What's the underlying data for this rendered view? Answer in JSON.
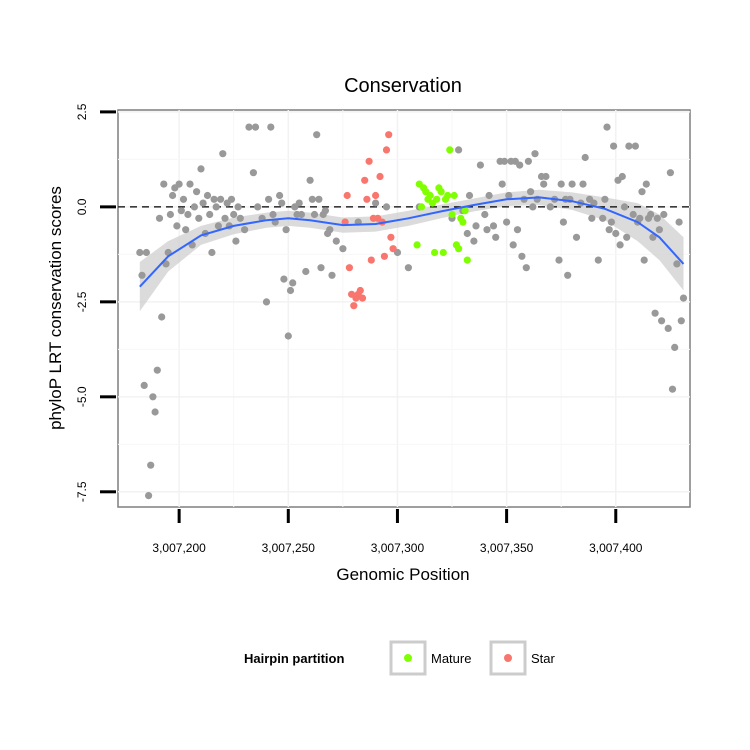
{
  "chart_data": {
    "type": "scatter",
    "title": "Conservation",
    "xlabel": "Genomic Position",
    "ylabel": "phyloP LRT conservation scores",
    "xlim": [
      3007172,
      3007434
    ],
    "ylim": [
      -7.9,
      2.55
    ],
    "x_ticks": [
      3007200,
      3007250,
      3007300,
      3007350,
      3007400
    ],
    "x_tick_labels": [
      "3,007,200",
      "3,007,250",
      "3,007,300",
      "3,007,350",
      "3,007,400"
    ],
    "y_ticks": [
      2.5,
      0.0,
      -2.5,
      -5.0,
      -7.5
    ],
    "y_tick_labels": [
      "2.5",
      "0.0",
      "-2.5",
      "-5.0",
      "-7.5"
    ],
    "reference_line_y": 0.0,
    "grid": true,
    "legend_position": "bottom",
    "colors": {
      "other": "#999999",
      "Mature": "#7fff00",
      "Star": "#f8766d",
      "smooth": "#3366ff",
      "band": "#cccccc"
    },
    "legend": {
      "title": "Hairpin partition",
      "entries": [
        "Mature",
        "Star"
      ]
    },
    "smooth": {
      "x": [
        3007182,
        3007195,
        3007210,
        3007225,
        3007240,
        3007250,
        3007260,
        3007275,
        3007290,
        3007305,
        3007320,
        3007335,
        3007350,
        3007365,
        3007380,
        3007395,
        3007410,
        3007420,
        3007431
      ],
      "y": [
        -2.1,
        -1.3,
        -0.75,
        -0.5,
        -0.35,
        -0.3,
        -0.35,
        -0.48,
        -0.45,
        -0.3,
        -0.12,
        0.05,
        0.2,
        0.25,
        0.15,
        -0.05,
        -0.4,
        -0.8,
        -1.5
      ],
      "lo": [
        -2.75,
        -1.7,
        -1.0,
        -0.72,
        -0.55,
        -0.5,
        -0.55,
        -0.68,
        -0.65,
        -0.5,
        -0.3,
        -0.12,
        0.02,
        0.05,
        -0.08,
        -0.35,
        -0.9,
        -1.4,
        -2.2
      ],
      "hi": [
        -1.45,
        -0.9,
        -0.5,
        -0.28,
        -0.15,
        -0.1,
        -0.15,
        -0.28,
        -0.25,
        -0.1,
        0.06,
        0.22,
        0.38,
        0.45,
        0.38,
        0.25,
        0.1,
        -0.2,
        -0.8
      ]
    },
    "series": [
      {
        "name": "Other",
        "points": [
          [
            3007182,
            -1.2
          ],
          [
            3007183,
            -1.8
          ],
          [
            3007184,
            -4.7
          ],
          [
            3007185,
            -1.2
          ],
          [
            3007186,
            -7.6
          ],
          [
            3007187,
            -6.8
          ],
          [
            3007188,
            -5.0
          ],
          [
            3007189,
            -5.4
          ],
          [
            3007190,
            -4.3
          ],
          [
            3007191,
            -0.3
          ],
          [
            3007192,
            -2.9
          ],
          [
            3007193,
            0.6
          ],
          [
            3007194,
            -1.5
          ],
          [
            3007195,
            -1.2
          ],
          [
            3007196,
            -0.2
          ],
          [
            3007197,
            0.3
          ],
          [
            3007198,
            0.5
          ],
          [
            3007199,
            -0.5
          ],
          [
            3007200,
            0.6
          ],
          [
            3007201,
            -0.1
          ],
          [
            3007202,
            0.2
          ],
          [
            3007203,
            -0.6
          ],
          [
            3007204,
            -0.2
          ],
          [
            3007205,
            0.6
          ],
          [
            3007206,
            -1.0
          ],
          [
            3007207,
            0.0
          ],
          [
            3007208,
            0.4
          ],
          [
            3007209,
            -0.3
          ],
          [
            3007210,
            1.0
          ],
          [
            3007211,
            0.1
          ],
          [
            3007212,
            -0.7
          ],
          [
            3007213,
            0.3
          ],
          [
            3007214,
            -0.2
          ],
          [
            3007215,
            -1.2
          ],
          [
            3007216,
            0.2
          ],
          [
            3007217,
            0.0
          ],
          [
            3007218,
            -0.5
          ],
          [
            3007219,
            0.2
          ],
          [
            3007220,
            1.4
          ],
          [
            3007221,
            -0.3
          ],
          [
            3007222,
            0.1
          ],
          [
            3007223,
            -0.5
          ],
          [
            3007224,
            0.2
          ],
          [
            3007225,
            -0.2
          ],
          [
            3007226,
            -0.9
          ],
          [
            3007227,
            0.0
          ],
          [
            3007228,
            -0.3
          ],
          [
            3007230,
            -0.6
          ],
          [
            3007232,
            2.1
          ],
          [
            3007234,
            0.9
          ],
          [
            3007235,
            2.1
          ],
          [
            3007236,
            0.0
          ],
          [
            3007238,
            -0.3
          ],
          [
            3007240,
            -2.5
          ],
          [
            3007241,
            0.2
          ],
          [
            3007242,
            2.1
          ],
          [
            3007243,
            -0.2
          ],
          [
            3007244,
            -0.4
          ],
          [
            3007246,
            0.3
          ],
          [
            3007247,
            0.1
          ],
          [
            3007248,
            -1.9
          ],
          [
            3007249,
            -0.6
          ],
          [
            3007250,
            -3.4
          ],
          [
            3007251,
            -2.2
          ],
          [
            3007252,
            -2.0
          ],
          [
            3007253,
            0.0
          ],
          [
            3007254,
            -0.2
          ],
          [
            3007255,
            0.1
          ],
          [
            3007256,
            -0.2
          ],
          [
            3007258,
            -1.7
          ],
          [
            3007260,
            0.7
          ],
          [
            3007261,
            0.2
          ],
          [
            3007262,
            -0.2
          ],
          [
            3007263,
            1.9
          ],
          [
            3007264,
            0.2
          ],
          [
            3007265,
            -1.6
          ],
          [
            3007266,
            -0.2
          ],
          [
            3007267,
            -0.1
          ],
          [
            3007268,
            -0.7
          ],
          [
            3007269,
            -0.6
          ],
          [
            3007270,
            -1.8
          ],
          [
            3007272,
            -0.9
          ],
          [
            3007275,
            -1.1
          ],
          [
            3007282,
            -0.4
          ],
          [
            3007290,
            0.1
          ],
          [
            3007295,
            0.0
          ],
          [
            3007300,
            -1.2
          ],
          [
            3007305,
            -1.6
          ],
          [
            3007310,
            0.0
          ],
          [
            3007325,
            -0.3
          ],
          [
            3007328,
            1.5
          ],
          [
            3007330,
            -0.1
          ],
          [
            3007332,
            -0.7
          ],
          [
            3007333,
            0.3
          ],
          [
            3007335,
            -0.9
          ],
          [
            3007336,
            -0.5
          ],
          [
            3007338,
            1.1
          ],
          [
            3007340,
            -0.2
          ],
          [
            3007341,
            -0.6
          ],
          [
            3007342,
            0.3
          ],
          [
            3007344,
            -0.5
          ],
          [
            3007345,
            -0.8
          ],
          [
            3007347,
            1.2
          ],
          [
            3007348,
            0.6
          ],
          [
            3007349,
            1.2
          ],
          [
            3007350,
            -0.4
          ],
          [
            3007351,
            0.3
          ],
          [
            3007352,
            1.2
          ],
          [
            3007353,
            -1.0
          ],
          [
            3007354,
            1.2
          ],
          [
            3007355,
            -0.6
          ],
          [
            3007356,
            1.1
          ],
          [
            3007357,
            -1.3
          ],
          [
            3007358,
            0.2
          ],
          [
            3007359,
            -1.6
          ],
          [
            3007360,
            1.2
          ],
          [
            3007361,
            0.4
          ],
          [
            3007362,
            0.0
          ],
          [
            3007363,
            1.4
          ],
          [
            3007364,
            0.2
          ],
          [
            3007366,
            0.8
          ],
          [
            3007367,
            0.6
          ],
          [
            3007368,
            0.8
          ],
          [
            3007370,
            0.0
          ],
          [
            3007372,
            0.2
          ],
          [
            3007374,
            -1.4
          ],
          [
            3007375,
            0.6
          ],
          [
            3007376,
            -0.4
          ],
          [
            3007377,
            0.2
          ],
          [
            3007378,
            -1.8
          ],
          [
            3007379,
            0.2
          ],
          [
            3007380,
            0.6
          ],
          [
            3007382,
            -0.8
          ],
          [
            3007384,
            0.1
          ],
          [
            3007385,
            0.6
          ],
          [
            3007386,
            1.3
          ],
          [
            3007388,
            0.2
          ],
          [
            3007389,
            -0.3
          ],
          [
            3007390,
            0.1
          ],
          [
            3007392,
            -1.4
          ],
          [
            3007394,
            -0.3
          ],
          [
            3007395,
            0.2
          ],
          [
            3007396,
            2.1
          ],
          [
            3007397,
            -0.6
          ],
          [
            3007398,
            -0.4
          ],
          [
            3007399,
            1.6
          ],
          [
            3007400,
            -0.7
          ],
          [
            3007401,
            0.7
          ],
          [
            3007402,
            -1.0
          ],
          [
            3007403,
            0.8
          ],
          [
            3007404,
            0.0
          ],
          [
            3007405,
            -0.8
          ],
          [
            3007406,
            1.6
          ],
          [
            3007408,
            -0.2
          ],
          [
            3007409,
            1.6
          ],
          [
            3007410,
            -0.4
          ],
          [
            3007411,
            -0.3
          ],
          [
            3007412,
            0.4
          ],
          [
            3007413,
            -1.4
          ],
          [
            3007414,
            0.6
          ],
          [
            3007415,
            -0.3
          ],
          [
            3007416,
            -0.2
          ],
          [
            3007417,
            -0.8
          ],
          [
            3007418,
            -2.8
          ],
          [
            3007419,
            -0.3
          ],
          [
            3007420,
            -0.6
          ],
          [
            3007421,
            -3.0
          ],
          [
            3007422,
            -0.2
          ],
          [
            3007424,
            -3.2
          ],
          [
            3007425,
            0.9
          ],
          [
            3007426,
            -4.8
          ],
          [
            3007427,
            -3.7
          ],
          [
            3007428,
            -1.5
          ],
          [
            3007429,
            -0.4
          ],
          [
            3007430,
            -3.0
          ],
          [
            3007431,
            -2.4
          ]
        ]
      },
      {
        "name": "Mature",
        "points": [
          [
            3007309,
            -1.0
          ],
          [
            3007310,
            0.6
          ],
          [
            3007311,
            0.0
          ],
          [
            3007312,
            0.5
          ],
          [
            3007313,
            0.4
          ],
          [
            3007314,
            0.2
          ],
          [
            3007315,
            0.3
          ],
          [
            3007316,
            0.1
          ],
          [
            3007317,
            -1.2
          ],
          [
            3007318,
            0.2
          ],
          [
            3007319,
            0.5
          ],
          [
            3007320,
            0.4
          ],
          [
            3007321,
            -1.2
          ],
          [
            3007322,
            0.2
          ],
          [
            3007323,
            0.3
          ],
          [
            3007324,
            1.5
          ],
          [
            3007325,
            -0.2
          ],
          [
            3007326,
            0.3
          ],
          [
            3007327,
            -1.0
          ],
          [
            3007328,
            -1.1
          ],
          [
            3007329,
            -0.3
          ],
          [
            3007330,
            -0.4
          ],
          [
            3007331,
            -0.1
          ],
          [
            3007332,
            -1.4
          ]
        ]
      },
      {
        "name": "Star",
        "points": [
          [
            3007276,
            -0.4
          ],
          [
            3007277,
            0.3
          ],
          [
            3007278,
            -1.6
          ],
          [
            3007279,
            -2.3
          ],
          [
            3007280,
            -2.6
          ],
          [
            3007281,
            -2.4
          ],
          [
            3007282,
            -2.3
          ],
          [
            3007283,
            -2.2
          ],
          [
            3007284,
            -2.4
          ],
          [
            3007285,
            0.7
          ],
          [
            3007286,
            0.2
          ],
          [
            3007287,
            1.2
          ],
          [
            3007288,
            -1.4
          ],
          [
            3007289,
            -0.3
          ],
          [
            3007290,
            0.3
          ],
          [
            3007291,
            -0.3
          ],
          [
            3007292,
            0.8
          ],
          [
            3007293,
            -0.4
          ],
          [
            3007294,
            -1.3
          ],
          [
            3007295,
            1.5
          ],
          [
            3007296,
            1.9
          ],
          [
            3007297,
            -0.8
          ],
          [
            3007298,
            -1.1
          ]
        ]
      }
    ]
  }
}
